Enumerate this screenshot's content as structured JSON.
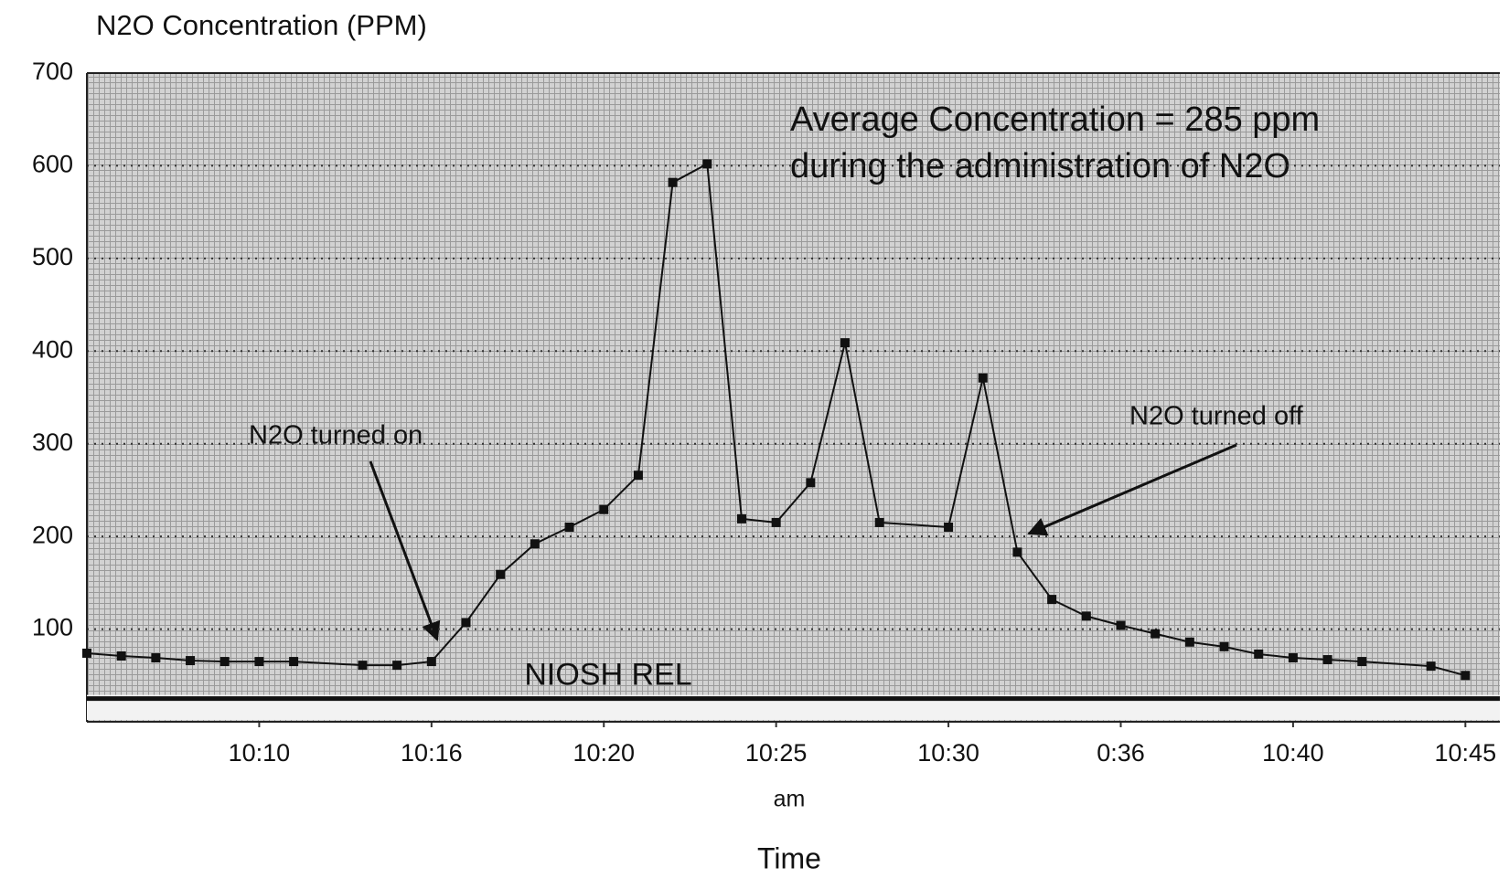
{
  "chart_data": {
    "type": "line",
    "title": "N2O Concentration (PPM)",
    "x_label": "Time",
    "x_unit": "am",
    "x": [
      "10:05",
      "10:06",
      "10:07",
      "10:08",
      "10:09",
      "10:10",
      "10:11",
      "10:13",
      "10:14",
      "10:15",
      "10:16",
      "10:17",
      "10:18",
      "10:19",
      "10:20",
      "10:21",
      "10:22",
      "10:23",
      "10:24",
      "10:25",
      "10:26",
      "10:27",
      "10:28",
      "10:30",
      "10:31",
      "10:32",
      "10:33",
      "10:34",
      "10:35",
      "10:36",
      "10:37",
      "10:38",
      "10:39",
      "10:40",
      "10:41",
      "10:42",
      "10:44",
      "10:45"
    ],
    "series": [
      {
        "name": "N2O",
        "color": "#111111",
        "values": [
          74,
          71,
          69,
          66,
          65,
          65,
          65,
          61,
          61,
          65,
          107,
          159,
          192,
          210,
          229,
          266,
          582,
          602,
          219,
          215,
          258,
          409,
          215,
          210,
          371,
          183,
          132,
          114,
          104,
          95,
          86,
          81,
          73,
          69,
          67,
          65,
          60,
          50
        ]
      }
    ],
    "xlim": [
      "10:05",
      "10:46"
    ],
    "xticks": [
      "10:10",
      {
        "value": "10:15",
        "label": "10:16"
      },
      "10:20",
      "10:25",
      "10:30",
      {
        "value": "10:35",
        "label": "0:36"
      },
      "10:40",
      "10:45"
    ],
    "ylim": [
      0,
      700
    ],
    "yticks": [
      100,
      200,
      300,
      400,
      500,
      600,
      700
    ],
    "grid": true,
    "reference_line": {
      "label": "NIOSH REL",
      "value": 25
    },
    "annotations": [
      "N2O turned on",
      "N2O turned off",
      "Average Concentration = 285 ppm",
      "during the administration of N2O"
    ]
  }
}
